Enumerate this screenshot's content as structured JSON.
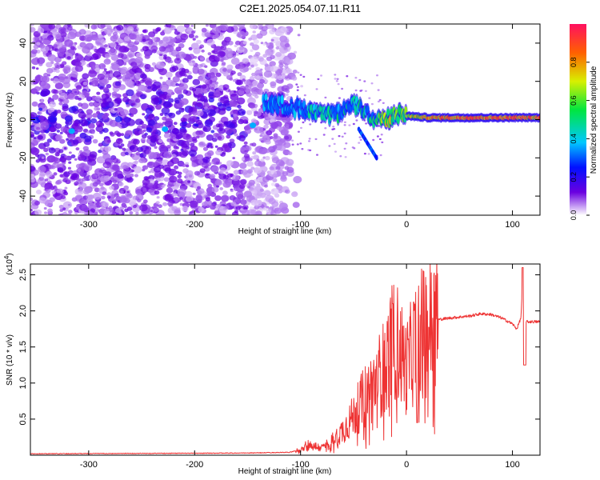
{
  "title": "C2E1.2025.054.07.11.R11",
  "chart_data": [
    {
      "type": "heatmap",
      "xlabel": "Height of straight line (km)",
      "ylabel": "Frequency (Hz)",
      "xlim": [
        -355,
        126
      ],
      "ylim": [
        -50,
        50
      ],
      "xticks": [
        -300,
        -200,
        -100,
        0,
        100
      ],
      "yticks": [
        -40,
        -20,
        0,
        20,
        40
      ],
      "colorbar": {
        "label": "Normalized spectral amplitude",
        "range": [
          0,
          1
        ],
        "ticks": [
          0.0,
          0.2,
          0.4,
          0.6,
          0.8
        ]
      },
      "ridge": {
        "x": [
          -135,
          -110,
          -90,
          -70,
          -50,
          -40,
          -30,
          -20,
          -10,
          0,
          20,
          50,
          80,
          100,
          126
        ],
        "frequency": [
          9,
          7,
          4,
          2,
          8,
          5,
          0,
          0,
          3,
          2,
          1,
          1,
          1,
          1,
          1
        ],
        "amplitude": [
          0.4,
          0.45,
          0.5,
          0.55,
          0.5,
          0.55,
          0.6,
          0.85,
          0.7,
          0.8,
          0.9,
          0.95,
          0.95,
          0.95,
          0.95
        ]
      }
    },
    {
      "type": "line",
      "xlabel": "Height of straight line (km)",
      "ylabel": "SNR (10 * v/v)",
      "y_scale_label": "(x10",
      "y_scale_exp": "4",
      "xlim": [
        -355,
        126
      ],
      "ylim": [
        0,
        2.65
      ],
      "xticks": [
        -300,
        -200,
        -100,
        0,
        100
      ],
      "yticks": [
        0.5,
        1.0,
        1.5,
        2.0,
        2.5
      ],
      "color": "#ee3333",
      "series": [
        {
          "x": [
            -355,
            -150,
            -110,
            -100,
            -95,
            -80,
            -70,
            -60,
            -50,
            -40,
            -30,
            -20,
            -15,
            -10,
            0,
            10,
            20,
            30,
            40,
            60,
            70,
            80,
            90,
            100,
            104,
            108,
            110,
            112,
            116,
            126
          ],
          "y": [
            0.02,
            0.03,
            0.04,
            0.08,
            0.15,
            0.1,
            0.2,
            0.35,
            0.55,
            0.8,
            1.0,
            1.25,
            1.5,
            1.6,
            1.2,
            1.65,
            1.75,
            1.88,
            1.9,
            1.93,
            1.96,
            1.95,
            1.9,
            1.82,
            1.75,
            1.9,
            2.6,
            1.85,
            1.85,
            1.85
          ]
        }
      ]
    }
  ]
}
